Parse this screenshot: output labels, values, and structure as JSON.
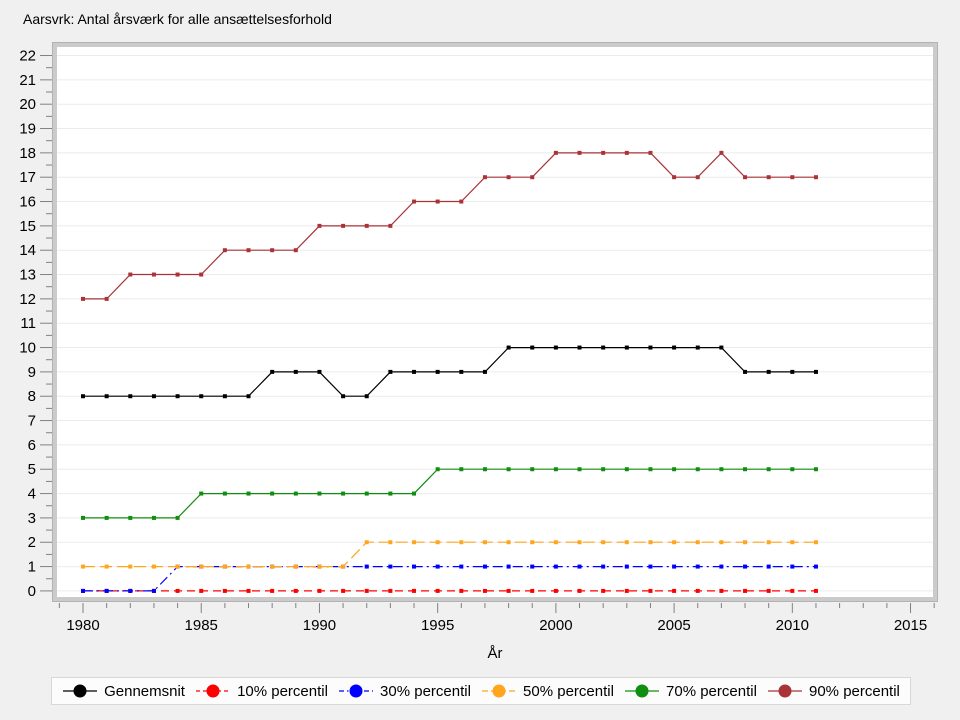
{
  "title": "Aarsvrk: Antal årsværk for alle ansættelsesforhold",
  "colors": {
    "background": "#f0f0f0",
    "plot_background": "#ffffff",
    "grid": "#ebebeb",
    "frame": "#cbcbcb",
    "frame_edge": "#b3b3b3",
    "tick": "#808080",
    "text": "#000000",
    "legend_background": "#fcfcfc",
    "legend_border": "#d8d8d8"
  },
  "chart_data": {
    "type": "line",
    "title": "Aarsvrk: Antal årsværk for alle ansættelsesforhold",
    "xlabel": "År",
    "ylabel": "",
    "grid": "horizontal",
    "legend_position": "bottom",
    "xlim": [
      1978.9,
      2015.95
    ],
    "ylim": [
      -0.25,
      22.35
    ],
    "x_major_ticks": [
      1980,
      1985,
      1990,
      1995,
      2000,
      2005,
      2010,
      2015
    ],
    "x_minor_tick_step": 1,
    "x_minor_tick_range": [
      1979,
      2016
    ],
    "y_major_tick_step": 1,
    "y_minor_tick_step": 0.5,
    "y_tick_labels": [
      0,
      1,
      2,
      3,
      4,
      5,
      6,
      7,
      8,
      9,
      10,
      11,
      12,
      13,
      14,
      15,
      16,
      17,
      18,
      19,
      20,
      21,
      22
    ],
    "x": [
      1980,
      1981,
      1982,
      1983,
      1984,
      1985,
      1986,
      1987,
      1988,
      1989,
      1990,
      1991,
      1992,
      1993,
      1994,
      1995,
      1996,
      1997,
      1998,
      1999,
      2000,
      2001,
      2002,
      2003,
      2004,
      2005,
      2006,
      2007,
      2008,
      2009,
      2010,
      2011
    ],
    "series": [
      {
        "name": "Gennemsnit",
        "color": "#000000",
        "dash": "solid",
        "values": [
          8,
          8,
          8,
          8,
          8,
          8,
          8,
          8,
          9,
          9,
          9,
          8,
          8,
          9,
          9,
          9,
          9,
          9,
          10,
          10,
          10,
          10,
          10,
          10,
          10,
          10,
          10,
          10,
          9,
          9,
          9,
          9
        ]
      },
      {
        "name": "10% percentil",
        "color": "#ff0000",
        "dash": "dashed",
        "values": [
          0,
          0,
          0,
          0,
          0,
          0,
          0,
          0,
          0,
          0,
          0,
          0,
          0,
          0,
          0,
          0,
          0,
          0,
          0,
          0,
          0,
          0,
          0,
          0,
          0,
          0,
          0,
          0,
          0,
          0,
          0,
          0
        ]
      },
      {
        "name": "30% percentil",
        "color": "#0000ff",
        "dash": "dashdot",
        "values": [
          0,
          0,
          0,
          0,
          1,
          1,
          1,
          1,
          1,
          1,
          1,
          1,
          1,
          1,
          1,
          1,
          1,
          1,
          1,
          1,
          1,
          1,
          1,
          1,
          1,
          1,
          1,
          1,
          1,
          1,
          1,
          1
        ]
      },
      {
        "name": "50% percentil",
        "color": "#ffa51e",
        "dash": "longdash",
        "values": [
          1,
          1,
          1,
          1,
          1,
          1,
          1,
          1,
          1,
          1,
          1,
          1,
          2,
          2,
          2,
          2,
          2,
          2,
          2,
          2,
          2,
          2,
          2,
          2,
          2,
          2,
          2,
          2,
          2,
          2,
          2,
          2
        ]
      },
      {
        "name": "70% percentil",
        "color": "#0f8e0f",
        "dash": "solid",
        "values": [
          3,
          3,
          3,
          3,
          3,
          4,
          4,
          4,
          4,
          4,
          4,
          4,
          4,
          4,
          4,
          5,
          5,
          5,
          5,
          5,
          5,
          5,
          5,
          5,
          5,
          5,
          5,
          5,
          5,
          5,
          5,
          5
        ]
      },
      {
        "name": "90% percentil",
        "color": "#aa3338",
        "dash": "solid",
        "values": [
          12,
          12,
          13,
          13,
          13,
          13,
          14,
          14,
          14,
          14,
          15,
          15,
          15,
          15,
          16,
          16,
          16,
          17,
          17,
          17,
          18,
          18,
          18,
          18,
          18,
          17,
          17,
          18,
          17,
          17,
          17,
          17
        ]
      }
    ]
  }
}
